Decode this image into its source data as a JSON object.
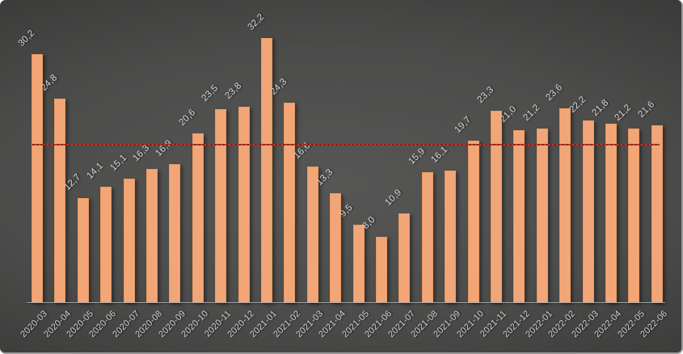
{
  "chart": {
    "title": "",
    "colors": {
      "bar_fill": "#f2a678",
      "bar_edge": "#e9995e",
      "label_text": "#d9d9d9",
      "tick_text": "#cfcfcf",
      "axis_line": "#a6a6a6",
      "avg_line_dot": "#c23a2a",
      "avg_line_faint": "#7e261e",
      "background_center": "#565655",
      "background_edge": "#1e1e1e"
    }
  },
  "chart_data": {
    "type": "bar",
    "categories": [
      "2020-03",
      "2020-04",
      "2020-05",
      "2020-06",
      "2020-07",
      "2020-08",
      "2020-09",
      "2020-10",
      "2020-11",
      "2020-12",
      "2021-01",
      "2021-02",
      "2021-03",
      "2021-04",
      "2021-05",
      "2021-06",
      "2021-07",
      "2021-08",
      "2021-09",
      "2021-10",
      "2021-11",
      "2021-12",
      "2022-01",
      "2022-02",
      "2022-03",
      "2022-04",
      "2022-05",
      "2022-06"
    ],
    "values": [
      30.2,
      24.8,
      12.7,
      14.1,
      15.1,
      16.3,
      16.9,
      20.6,
      23.5,
      23.8,
      32.2,
      24.3,
      16.6,
      13.3,
      9.5,
      8.0,
      10.9,
      15.9,
      16.1,
      19.7,
      23.3,
      21.0,
      21.2,
      23.6,
      22.2,
      21.8,
      21.2,
      21.6
    ],
    "value_labels": [
      "30,2",
      "24,8",
      "12,7",
      "14,1",
      "15,1",
      "16,3",
      "16,9",
      "20,6",
      "23,5",
      "23,8",
      "32,2",
      "24,3",
      "16,6",
      "13,3",
      "9,5",
      "8,0",
      "10,9",
      "15,9",
      "16,1",
      "19,7",
      "23,3",
      "21,0",
      "21,2",
      "23,6",
      "22,2",
      "21,8",
      "21,2",
      "21,6"
    ],
    "decimal_separator": ",",
    "title": "",
    "xlabel": "",
    "ylabel": "",
    "ylim": [
      0,
      35
    ],
    "grid": false,
    "legend": "none",
    "annotations": {
      "average_line_value": 19.3,
      "average_line_style": "dotted-red"
    }
  }
}
